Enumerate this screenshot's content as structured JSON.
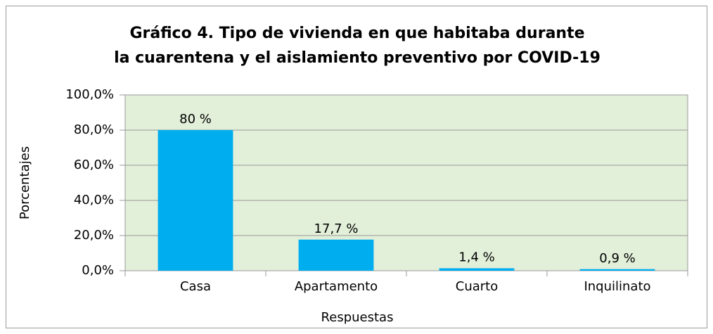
{
  "chart_data": {
    "type": "bar",
    "title": [
      "Gráfico 4. Tipo de vivienda en que habitaba durante",
      "la cuarentena y el aislamiento preventivo por COVID-19"
    ],
    "x_label": "Respuestas",
    "y_label": "Porcentajes",
    "categories": [
      "Casa",
      "Apartamento",
      "Cuarto",
      "Inquilinato"
    ],
    "values": [
      80,
      17.7,
      1.4,
      0.9
    ],
    "value_labels": [
      "80 %",
      "17,7 %",
      "1,4 %",
      "0,9 %"
    ],
    "color": "#00aeef",
    "ylim": [
      0,
      100
    ],
    "yticks": [
      {
        "value": 0,
        "label": "0,0%"
      },
      {
        "value": 20,
        "label": "20,0%"
      },
      {
        "value": 40,
        "label": "40,0%"
      },
      {
        "value": 60,
        "label": "60,0%"
      },
      {
        "value": 80,
        "label": "80,0%"
      },
      {
        "value": 100,
        "label": "100,0%"
      }
    ],
    "grid": true
  }
}
